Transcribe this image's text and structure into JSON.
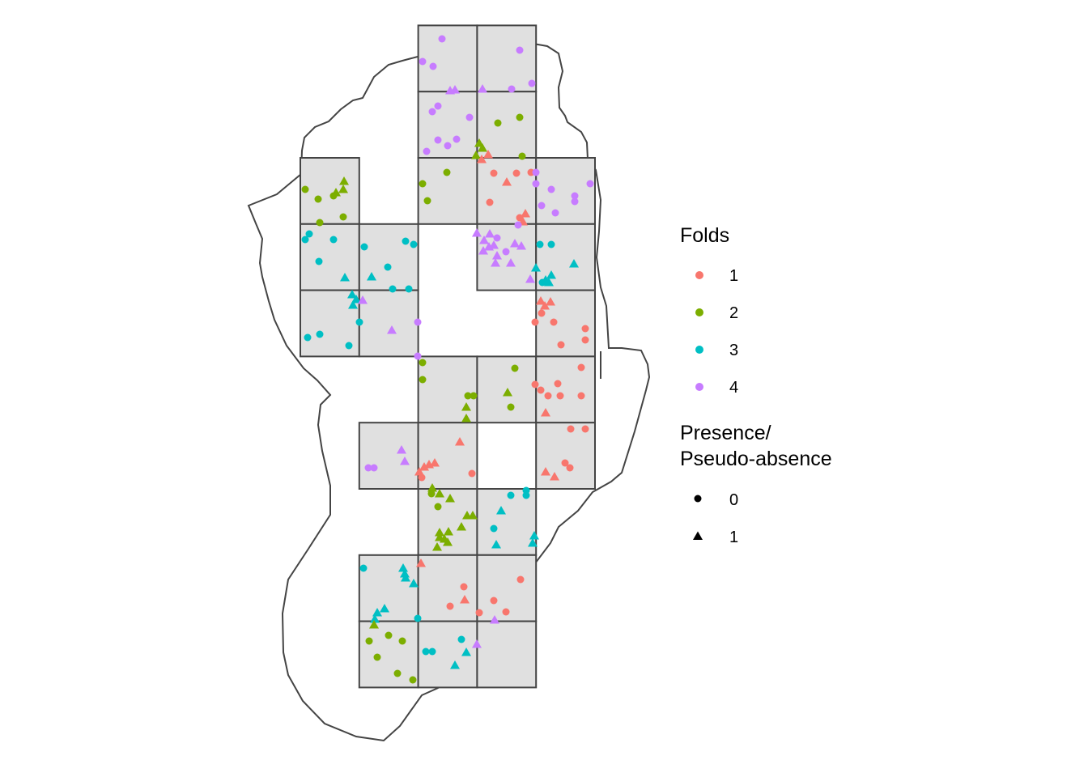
{
  "chart_data": {
    "type": "scatter",
    "title": "",
    "xlabel": "",
    "ylabel": "",
    "grid": false,
    "legend_placement": "right",
    "legends": [
      {
        "title": "Folds",
        "entries": [
          {
            "label": "1",
            "color": "#F8766D"
          },
          {
            "label": "2",
            "color": "#7CAE00"
          },
          {
            "label": "3",
            "color": "#00BFC4"
          },
          {
            "label": "4",
            "color": "#C77CFF"
          }
        ]
      },
      {
        "title_lines": [
          "Presence/",
          "Pseudo-absence"
        ],
        "entries": [
          {
            "label": "0",
            "shape": "circle"
          },
          {
            "label": "1",
            "shape": "triangle"
          }
        ]
      }
    ],
    "colors": {
      "fold1": "#F8766D",
      "fold2": "#7CAE00",
      "fold3": "#00BFC4",
      "fold4": "#C77CFF",
      "tile_fill": "#E0E0E0",
      "outline": "#444444"
    },
    "blocks": [
      {
        "col": 2,
        "row": 0,
        "fold": 4
      },
      {
        "col": 3,
        "row": 0,
        "fold": 4
      },
      {
        "col": 2,
        "row": 1,
        "fold": 4
      },
      {
        "col": 3,
        "row": 1,
        "fold": 2
      },
      {
        "col": 0,
        "row": 2,
        "fold": 2
      },
      {
        "col": 2,
        "row": 2,
        "fold": 2
      },
      {
        "col": 3,
        "row": 2,
        "fold": 1
      },
      {
        "col": 4,
        "row": 2,
        "fold": 4
      },
      {
        "col": 0,
        "row": 3,
        "fold": 3
      },
      {
        "col": 1,
        "row": 3,
        "fold": 3
      },
      {
        "col": 3,
        "row": 3,
        "fold": 4
      },
      {
        "col": 4,
        "row": 3,
        "fold": 3
      },
      {
        "col": 0,
        "row": 4,
        "fold": 3
      },
      {
        "col": 1,
        "row": 4,
        "fold": 3
      },
      {
        "col": 4,
        "row": 4,
        "fold": 1
      },
      {
        "col": 2,
        "row": 5,
        "fold": 2
      },
      {
        "col": 3,
        "row": 5,
        "fold": 2
      },
      {
        "col": 4,
        "row": 5,
        "fold": 1
      },
      {
        "col": 1,
        "row": 6,
        "fold": 4
      },
      {
        "col": 2,
        "row": 6,
        "fold": 1
      },
      {
        "col": 4,
        "row": 6,
        "fold": 1
      },
      {
        "col": 2,
        "row": 7,
        "fold": 2
      },
      {
        "col": 3,
        "row": 7,
        "fold": 3
      },
      {
        "col": 1,
        "row": 8,
        "fold": 3
      },
      {
        "col": 2,
        "row": 8,
        "fold": 1
      },
      {
        "col": 3,
        "row": 8,
        "fold": 1
      },
      {
        "col": 1,
        "row": 9,
        "fold": 2
      },
      {
        "col": 2,
        "row": 9,
        "fold": 3
      },
      {
        "col": 3,
        "row": 9,
        "fold": 3
      }
    ],
    "points": [
      [
        546,
        48,
        4,
        0
      ],
      [
        522,
        76,
        4,
        0
      ],
      [
        642,
        62,
        4,
        0
      ],
      [
        562,
        111,
        4,
        1
      ],
      [
        556,
        112,
        4,
        1
      ],
      [
        596,
        110,
        4,
        1
      ],
      [
        535,
        82,
        4,
        0
      ],
      [
        632,
        110,
        4,
        0
      ],
      [
        657,
        103,
        4,
        0
      ],
      [
        541,
        131,
        4,
        0
      ],
      [
        534,
        138,
        4,
        0
      ],
      [
        580,
        145,
        4,
        0
      ],
      [
        541,
        173,
        4,
        0
      ],
      [
        553,
        180,
        4,
        0
      ],
      [
        564,
        172,
        4,
        0
      ],
      [
        527,
        187,
        4,
        0
      ],
      [
        615,
        152,
        2,
        0
      ],
      [
        642,
        145,
        2,
        0
      ],
      [
        592,
        177,
        2,
        1
      ],
      [
        596,
        183,
        2,
        1
      ],
      [
        588,
        192,
        2,
        1
      ],
      [
        645,
        193,
        2,
        0
      ],
      [
        603,
        191,
        1,
        1
      ],
      [
        595,
        197,
        1,
        1
      ],
      [
        610,
        214,
        1,
        0
      ],
      [
        638,
        214,
        1,
        0
      ],
      [
        656,
        213,
        1,
        0
      ],
      [
        626,
        225,
        1,
        1
      ],
      [
        649,
        264,
        1,
        1
      ],
      [
        642,
        269,
        1,
        0
      ],
      [
        646,
        274,
        1,
        1
      ],
      [
        605,
        250,
        1,
        0
      ],
      [
        662,
        213,
        4,
        0
      ],
      [
        662,
        227,
        4,
        0
      ],
      [
        681,
        234,
        4,
        0
      ],
      [
        710,
        242,
        4,
        0
      ],
      [
        710,
        249,
        4,
        0
      ],
      [
        729,
        227,
        4,
        0
      ],
      [
        669,
        254,
        4,
        0
      ],
      [
        686,
        263,
        4,
        0
      ],
      [
        425,
        224,
        2,
        1
      ],
      [
        415,
        238,
        2,
        1
      ],
      [
        424,
        234,
        2,
        1
      ],
      [
        377,
        234,
        2,
        0
      ],
      [
        393,
        246,
        2,
        0
      ],
      [
        412,
        242,
        2,
        0
      ],
      [
        395,
        275,
        2,
        0
      ],
      [
        424,
        268,
        2,
        0
      ],
      [
        552,
        213,
        2,
        0
      ],
      [
        522,
        227,
        2,
        0
      ],
      [
        528,
        248,
        2,
        0
      ],
      [
        382,
        289,
        3,
        0
      ],
      [
        377,
        296,
        3,
        0
      ],
      [
        412,
        296,
        3,
        0
      ],
      [
        394,
        323,
        3,
        0
      ],
      [
        426,
        343,
        3,
        1
      ],
      [
        459,
        342,
        3,
        1
      ],
      [
        479,
        330,
        3,
        0
      ],
      [
        450,
        305,
        3,
        0
      ],
      [
        501,
        298,
        3,
        0
      ],
      [
        511,
        302,
        3,
        0
      ],
      [
        485,
        357,
        3,
        0
      ],
      [
        505,
        357,
        3,
        0
      ],
      [
        589,
        288,
        4,
        1
      ],
      [
        605,
        289,
        4,
        1
      ],
      [
        598,
        297,
        4,
        1
      ],
      [
        610,
        303,
        4,
        1
      ],
      [
        614,
        294,
        4,
        0
      ],
      [
        604,
        305,
        4,
        1
      ],
      [
        597,
        310,
        4,
        1
      ],
      [
        612,
        325,
        4,
        1
      ],
      [
        636,
        301,
        4,
        1
      ],
      [
        644,
        304,
        4,
        1
      ],
      [
        631,
        325,
        4,
        1
      ],
      [
        625,
        311,
        4,
        0
      ],
      [
        614,
        316,
        4,
        1
      ],
      [
        640,
        278,
        4,
        0
      ],
      [
        655,
        345,
        4,
        1
      ],
      [
        667,
        302,
        3,
        0
      ],
      [
        681,
        302,
        3,
        0
      ],
      [
        662,
        331,
        3,
        1
      ],
      [
        709,
        326,
        3,
        1
      ],
      [
        674,
        346,
        3,
        1
      ],
      [
        678,
        349,
        3,
        1
      ],
      [
        681,
        340,
        3,
        1
      ],
      [
        670,
        349,
        3,
        0
      ],
      [
        435,
        364,
        3,
        1
      ],
      [
        440,
        370,
        3,
        1
      ],
      [
        436,
        377,
        3,
        1
      ],
      [
        444,
        398,
        3,
        0
      ],
      [
        380,
        417,
        3,
        0
      ],
      [
        395,
        413,
        3,
        0
      ],
      [
        431,
        427,
        3,
        0
      ],
      [
        448,
        371,
        4,
        1
      ],
      [
        484,
        408,
        4,
        1
      ],
      [
        516,
        398,
        4,
        0
      ],
      [
        516,
        440,
        4,
        0
      ],
      [
        668,
        372,
        1,
        1
      ],
      [
        673,
        378,
        1,
        1
      ],
      [
        680,
        373,
        1,
        1
      ],
      [
        669,
        387,
        1,
        0
      ],
      [
        661,
        398,
        1,
        0
      ],
      [
        684,
        398,
        1,
        0
      ],
      [
        723,
        406,
        1,
        0
      ],
      [
        723,
        420,
        1,
        0
      ],
      [
        693,
        426,
        1,
        0
      ],
      [
        522,
        448,
        2,
        0
      ],
      [
        522,
        469,
        2,
        0
      ],
      [
        636,
        455,
        2,
        0
      ],
      [
        578,
        489,
        2,
        0
      ],
      [
        585,
        489,
        2,
        0
      ],
      [
        627,
        485,
        2,
        1
      ],
      [
        631,
        503,
        2,
        0
      ],
      [
        576,
        503,
        2,
        1
      ],
      [
        576,
        517,
        2,
        1
      ],
      [
        661,
        475,
        1,
        0
      ],
      [
        668,
        482,
        1,
        0
      ],
      [
        677,
        489,
        1,
        0
      ],
      [
        689,
        474,
        1,
        0
      ],
      [
        718,
        454,
        1,
        0
      ],
      [
        692,
        489,
        1,
        0
      ],
      [
        718,
        489,
        1,
        0
      ],
      [
        674,
        510,
        1,
        1
      ],
      [
        705,
        530,
        1,
        0
      ],
      [
        723,
        530,
        1,
        0
      ],
      [
        568,
        546,
        1,
        1
      ],
      [
        496,
        556,
        4,
        1
      ],
      [
        500,
        570,
        4,
        1
      ],
      [
        455,
        578,
        4,
        0
      ],
      [
        462,
        578,
        4,
        0
      ],
      [
        518,
        583,
        1,
        1
      ],
      [
        524,
        577,
        1,
        1
      ],
      [
        530,
        574,
        1,
        1
      ],
      [
        537,
        572,
        1,
        1
      ],
      [
        521,
        590,
        1,
        0
      ],
      [
        583,
        585,
        1,
        0
      ],
      [
        698,
        572,
        1,
        0
      ],
      [
        704,
        578,
        1,
        0
      ],
      [
        674,
        583,
        1,
        1
      ],
      [
        685,
        589,
        1,
        1
      ],
      [
        534,
        603,
        2,
        1
      ],
      [
        543,
        610,
        2,
        1
      ],
      [
        533,
        610,
        2,
        0
      ],
      [
        556,
        616,
        2,
        1
      ],
      [
        541,
        626,
        2,
        0
      ],
      [
        584,
        637,
        2,
        1
      ],
      [
        577,
        637,
        2,
        1
      ],
      [
        570,
        651,
        2,
        1
      ],
      [
        554,
        657,
        2,
        1
      ],
      [
        543,
        664,
        2,
        1
      ],
      [
        540,
        676,
        2,
        1
      ],
      [
        549,
        666,
        2,
        1
      ],
      [
        553,
        670,
        2,
        1
      ],
      [
        543,
        658,
        2,
        1
      ],
      [
        631,
        612,
        3,
        0
      ],
      [
        650,
        606,
        3,
        0
      ],
      [
        650,
        612,
        3,
        0
      ],
      [
        619,
        631,
        3,
        1
      ],
      [
        610,
        653,
        3,
        0
      ],
      [
        613,
        673,
        3,
        1
      ],
      [
        660,
        662,
        3,
        1
      ],
      [
        658,
        671,
        3,
        1
      ],
      [
        520,
        696,
        1,
        1
      ],
      [
        643,
        716,
        1,
        0
      ],
      [
        573,
        725,
        1,
        0
      ],
      [
        574,
        741,
        1,
        1
      ],
      [
        556,
        749,
        1,
        0
      ],
      [
        592,
        757,
        1,
        0
      ],
      [
        610,
        742,
        1,
        0
      ],
      [
        625,
        756,
        1,
        0
      ],
      [
        449,
        702,
        3,
        0
      ],
      [
        498,
        702,
        3,
        1
      ],
      [
        500,
        709,
        3,
        1
      ],
      [
        501,
        714,
        3,
        1
      ],
      [
        511,
        721,
        3,
        1
      ],
      [
        475,
        752,
        3,
        1
      ],
      [
        466,
        757,
        3,
        1
      ],
      [
        463,
        765,
        3,
        1
      ],
      [
        516,
        764,
        3,
        0
      ],
      [
        570,
        790,
        3,
        0
      ],
      [
        576,
        806,
        3,
        1
      ],
      [
        526,
        805,
        3,
        0
      ],
      [
        534,
        805,
        3,
        0
      ],
      [
        562,
        822,
        3,
        1
      ],
      [
        462,
        772,
        2,
        1
      ],
      [
        480,
        785,
        2,
        0
      ],
      [
        497,
        792,
        2,
        0
      ],
      [
        456,
        792,
        2,
        0
      ],
      [
        466,
        812,
        2,
        0
      ],
      [
        491,
        832,
        2,
        0
      ],
      [
        510,
        840,
        2,
        0
      ],
      [
        589,
        796,
        4,
        1
      ],
      [
        611,
        766,
        4,
        1
      ]
    ]
  }
}
